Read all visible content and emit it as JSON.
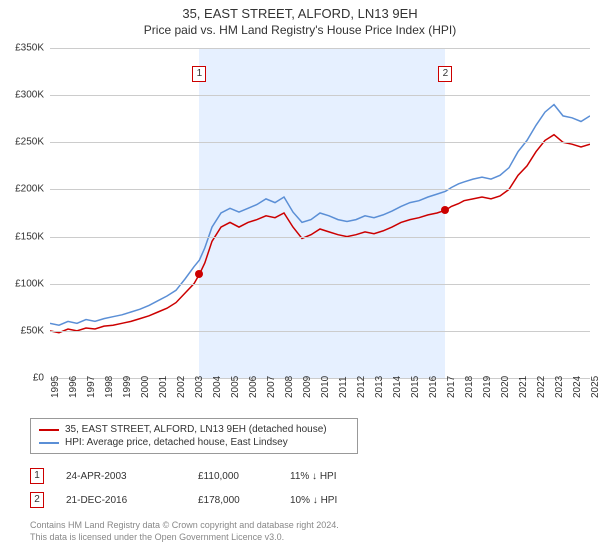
{
  "title": "35, EAST STREET, ALFORD, LN13 9EH",
  "subtitle": "Price paid vs. HM Land Registry's House Price Index (HPI)",
  "chart": {
    "type": "line",
    "background_color": "#ffffff",
    "grid_color": "#cccccc",
    "shaded_color": "#e6f0ff",
    "x_start_year": 1995,
    "x_end_year": 2025,
    "y_min": 0,
    "y_max": 350000,
    "y_ticks": [
      0,
      50000,
      100000,
      150000,
      200000,
      250000,
      300000,
      350000
    ],
    "y_tick_labels": [
      "£0",
      "£50K",
      "£100K",
      "£150K",
      "£200K",
      "£250K",
      "£300K",
      "£350K"
    ],
    "x_years": [
      1995,
      1996,
      1997,
      1998,
      1999,
      2000,
      2001,
      2002,
      2003,
      2004,
      2005,
      2006,
      2007,
      2008,
      2009,
      2010,
      2011,
      2012,
      2013,
      2014,
      2015,
      2016,
      2017,
      2018,
      2019,
      2020,
      2021,
      2022,
      2023,
      2024,
      2025
    ],
    "shaded_start_year": 2003.3,
    "shaded_end_year": 2016.97,
    "series": [
      {
        "name": "35, EAST STREET, ALFORD, LN13 9EH (detached house)",
        "color": "#cc0000",
        "width": 1.5,
        "points": [
          [
            1995,
            50000
          ],
          [
            1995.5,
            48000
          ],
          [
            1996,
            52000
          ],
          [
            1996.5,
            50000
          ],
          [
            1997,
            53000
          ],
          [
            1997.5,
            52000
          ],
          [
            1998,
            55000
          ],
          [
            1998.5,
            56000
          ],
          [
            1999,
            58000
          ],
          [
            1999.5,
            60000
          ],
          [
            2000,
            63000
          ],
          [
            2000.5,
            66000
          ],
          [
            2001,
            70000
          ],
          [
            2001.5,
            74000
          ],
          [
            2002,
            80000
          ],
          [
            2002.5,
            90000
          ],
          [
            2003,
            100000
          ],
          [
            2003.3,
            110000
          ],
          [
            2003.6,
            122000
          ],
          [
            2004,
            145000
          ],
          [
            2004.5,
            160000
          ],
          [
            2005,
            165000
          ],
          [
            2005.5,
            160000
          ],
          [
            2006,
            165000
          ],
          [
            2006.5,
            168000
          ],
          [
            2007,
            172000
          ],
          [
            2007.5,
            170000
          ],
          [
            2008,
            175000
          ],
          [
            2008.5,
            160000
          ],
          [
            2009,
            148000
          ],
          [
            2009.5,
            152000
          ],
          [
            2010,
            158000
          ],
          [
            2010.5,
            155000
          ],
          [
            2011,
            152000
          ],
          [
            2011.5,
            150000
          ],
          [
            2012,
            152000
          ],
          [
            2012.5,
            155000
          ],
          [
            2013,
            153000
          ],
          [
            2013.5,
            156000
          ],
          [
            2014,
            160000
          ],
          [
            2014.5,
            165000
          ],
          [
            2015,
            168000
          ],
          [
            2015.5,
            170000
          ],
          [
            2016,
            173000
          ],
          [
            2016.5,
            175000
          ],
          [
            2016.97,
            178000
          ],
          [
            2017.3,
            182000
          ],
          [
            2017.7,
            185000
          ],
          [
            2018,
            188000
          ],
          [
            2018.5,
            190000
          ],
          [
            2019,
            192000
          ],
          [
            2019.5,
            190000
          ],
          [
            2020,
            193000
          ],
          [
            2020.5,
            200000
          ],
          [
            2021,
            215000
          ],
          [
            2021.5,
            225000
          ],
          [
            2022,
            240000
          ],
          [
            2022.5,
            252000
          ],
          [
            2023,
            258000
          ],
          [
            2023.5,
            250000
          ],
          [
            2024,
            248000
          ],
          [
            2024.5,
            245000
          ],
          [
            2025,
            248000
          ]
        ]
      },
      {
        "name": "HPI: Average price, detached house, East Lindsey",
        "color": "#5b8fd6",
        "width": 1.5,
        "points": [
          [
            1995,
            58000
          ],
          [
            1995.5,
            56000
          ],
          [
            1996,
            60000
          ],
          [
            1996.5,
            58000
          ],
          [
            1997,
            62000
          ],
          [
            1997.5,
            60000
          ],
          [
            1998,
            63000
          ],
          [
            1998.5,
            65000
          ],
          [
            1999,
            67000
          ],
          [
            1999.5,
            70000
          ],
          [
            2000,
            73000
          ],
          [
            2000.5,
            77000
          ],
          [
            2001,
            82000
          ],
          [
            2001.5,
            87000
          ],
          [
            2002,
            93000
          ],
          [
            2002.5,
            105000
          ],
          [
            2003,
            118000
          ],
          [
            2003.3,
            125000
          ],
          [
            2003.6,
            138000
          ],
          [
            2004,
            160000
          ],
          [
            2004.5,
            175000
          ],
          [
            2005,
            180000
          ],
          [
            2005.5,
            176000
          ],
          [
            2006,
            180000
          ],
          [
            2006.5,
            184000
          ],
          [
            2007,
            190000
          ],
          [
            2007.5,
            186000
          ],
          [
            2008,
            192000
          ],
          [
            2008.5,
            176000
          ],
          [
            2009,
            165000
          ],
          [
            2009.5,
            168000
          ],
          [
            2010,
            175000
          ],
          [
            2010.5,
            172000
          ],
          [
            2011,
            168000
          ],
          [
            2011.5,
            166000
          ],
          [
            2012,
            168000
          ],
          [
            2012.5,
            172000
          ],
          [
            2013,
            170000
          ],
          [
            2013.5,
            173000
          ],
          [
            2014,
            177000
          ],
          [
            2014.5,
            182000
          ],
          [
            2015,
            186000
          ],
          [
            2015.5,
            188000
          ],
          [
            2016,
            192000
          ],
          [
            2016.5,
            195000
          ],
          [
            2016.97,
            198000
          ],
          [
            2017.3,
            202000
          ],
          [
            2017.7,
            206000
          ],
          [
            2018,
            208000
          ],
          [
            2018.5,
            211000
          ],
          [
            2019,
            213000
          ],
          [
            2019.5,
            211000
          ],
          [
            2020,
            215000
          ],
          [
            2020.5,
            223000
          ],
          [
            2021,
            240000
          ],
          [
            2021.5,
            252000
          ],
          [
            2022,
            268000
          ],
          [
            2022.5,
            282000
          ],
          [
            2023,
            290000
          ],
          [
            2023.5,
            278000
          ],
          [
            2024,
            276000
          ],
          [
            2024.5,
            272000
          ],
          [
            2025,
            278000
          ]
        ]
      }
    ],
    "markers": [
      {
        "label": "1",
        "year": 2003.3,
        "price": 110000
      },
      {
        "label": "2",
        "year": 2016.97,
        "price": 178000
      }
    ]
  },
  "legend": {
    "rows": [
      {
        "color": "#cc0000",
        "text": "35, EAST STREET, ALFORD, LN13 9EH (detached house)"
      },
      {
        "color": "#5b8fd6",
        "text": "HPI: Average price, detached house, East Lindsey"
      }
    ]
  },
  "sales": [
    {
      "marker": "1",
      "date": "24-APR-2003",
      "price": "£110,000",
      "delta": "11% ↓ HPI"
    },
    {
      "marker": "2",
      "date": "21-DEC-2016",
      "price": "£178,000",
      "delta": "10% ↓ HPI"
    }
  ],
  "footer_line1": "Contains HM Land Registry data © Crown copyright and database right 2024.",
  "footer_line2": "This data is licensed under the Open Government Licence v3.0.",
  "axis_label_fontsize": 10,
  "title_fontsize": 13,
  "subtitle_fontsize": 12
}
